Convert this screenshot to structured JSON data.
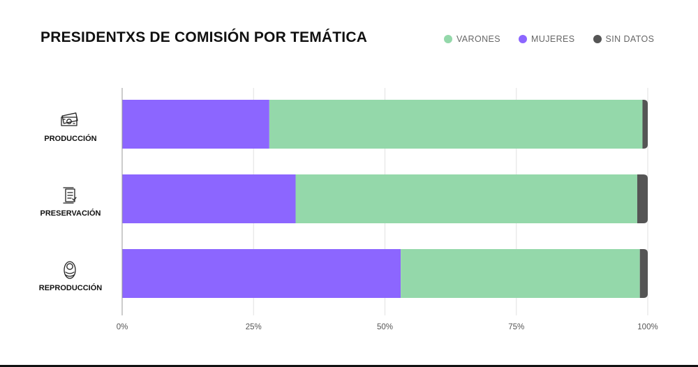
{
  "chart_data": {
    "type": "bar",
    "orientation": "horizontal",
    "stacked": true,
    "title": "PRESIDENTXS DE COMISIÓN POR TEMÁTICA",
    "categories": [
      "PRODUCCIÓN",
      "PRESERVACIÓN",
      "REPRODUCCIÓN"
    ],
    "category_icons": [
      "money-icon",
      "scroll-icon",
      "baby-icon"
    ],
    "series": [
      {
        "name": "MUJERES",
        "color": "#8c66ff",
        "values": [
          28,
          33,
          53
        ]
      },
      {
        "name": "VARONES",
        "color": "#94d8aa",
        "values": [
          71,
          65,
          45.5
        ]
      },
      {
        "name": "SIN DATOS",
        "color": "#555555",
        "values": [
          1,
          2,
          1.5
        ]
      }
    ],
    "legend": [
      {
        "name": "VARONES",
        "color": "#94d8aa"
      },
      {
        "name": "MUJERES",
        "color": "#8c66ff"
      },
      {
        "name": "SIN DATOS",
        "color": "#555555"
      }
    ],
    "legend_position": "top-right",
    "xlim": [
      0,
      100
    ],
    "xticks": [
      0,
      25,
      50,
      75,
      100
    ],
    "xtick_labels": [
      "0%",
      "25%",
      "50%",
      "75%",
      "100%"
    ],
    "grid": true,
    "xlabel": "",
    "ylabel": ""
  }
}
